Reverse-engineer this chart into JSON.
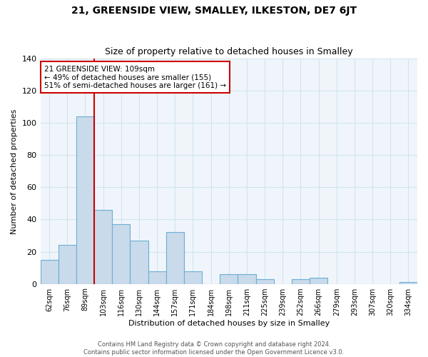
{
  "title": "21, GREENSIDE VIEW, SMALLEY, ILKESTON, DE7 6JT",
  "subtitle": "Size of property relative to detached houses in Smalley",
  "xlabel": "Distribution of detached houses by size in Smalley",
  "ylabel": "Number of detached properties",
  "bar_labels": [
    "62sqm",
    "76sqm",
    "89sqm",
    "103sqm",
    "116sqm",
    "130sqm",
    "144sqm",
    "157sqm",
    "171sqm",
    "184sqm",
    "198sqm",
    "211sqm",
    "225sqm",
    "239sqm",
    "252sqm",
    "266sqm",
    "279sqm",
    "293sqm",
    "307sqm",
    "320sqm",
    "334sqm"
  ],
  "bar_values": [
    15,
    24,
    104,
    46,
    37,
    27,
    8,
    32,
    8,
    0,
    6,
    6,
    3,
    0,
    3,
    4,
    0,
    0,
    0,
    0,
    1
  ],
  "bar_color": "#c9daea",
  "bar_edge_color": "#6aaed6",
  "vline_color": "#cc0000",
  "ylim": [
    0,
    140
  ],
  "yticks": [
    0,
    20,
    40,
    60,
    80,
    100,
    120,
    140
  ],
  "annotation_text": "21 GREENSIDE VIEW: 109sqm\n← 49% of detached houses are smaller (155)\n51% of semi-detached houses are larger (161) →",
  "annotation_box_color": "#ffffff",
  "annotation_box_edge": "#cc0000",
  "footer_line1": "Contains HM Land Registry data © Crown copyright and database right 2024.",
  "footer_line2": "Contains public sector information licensed under the Open Government Licence v3.0.",
  "grid_color": "#d0e4f0",
  "title_fontsize": 10,
  "subtitle_fontsize": 9,
  "tick_fontsize": 7,
  "axis_label_fontsize": 8,
  "footer_fontsize": 6
}
